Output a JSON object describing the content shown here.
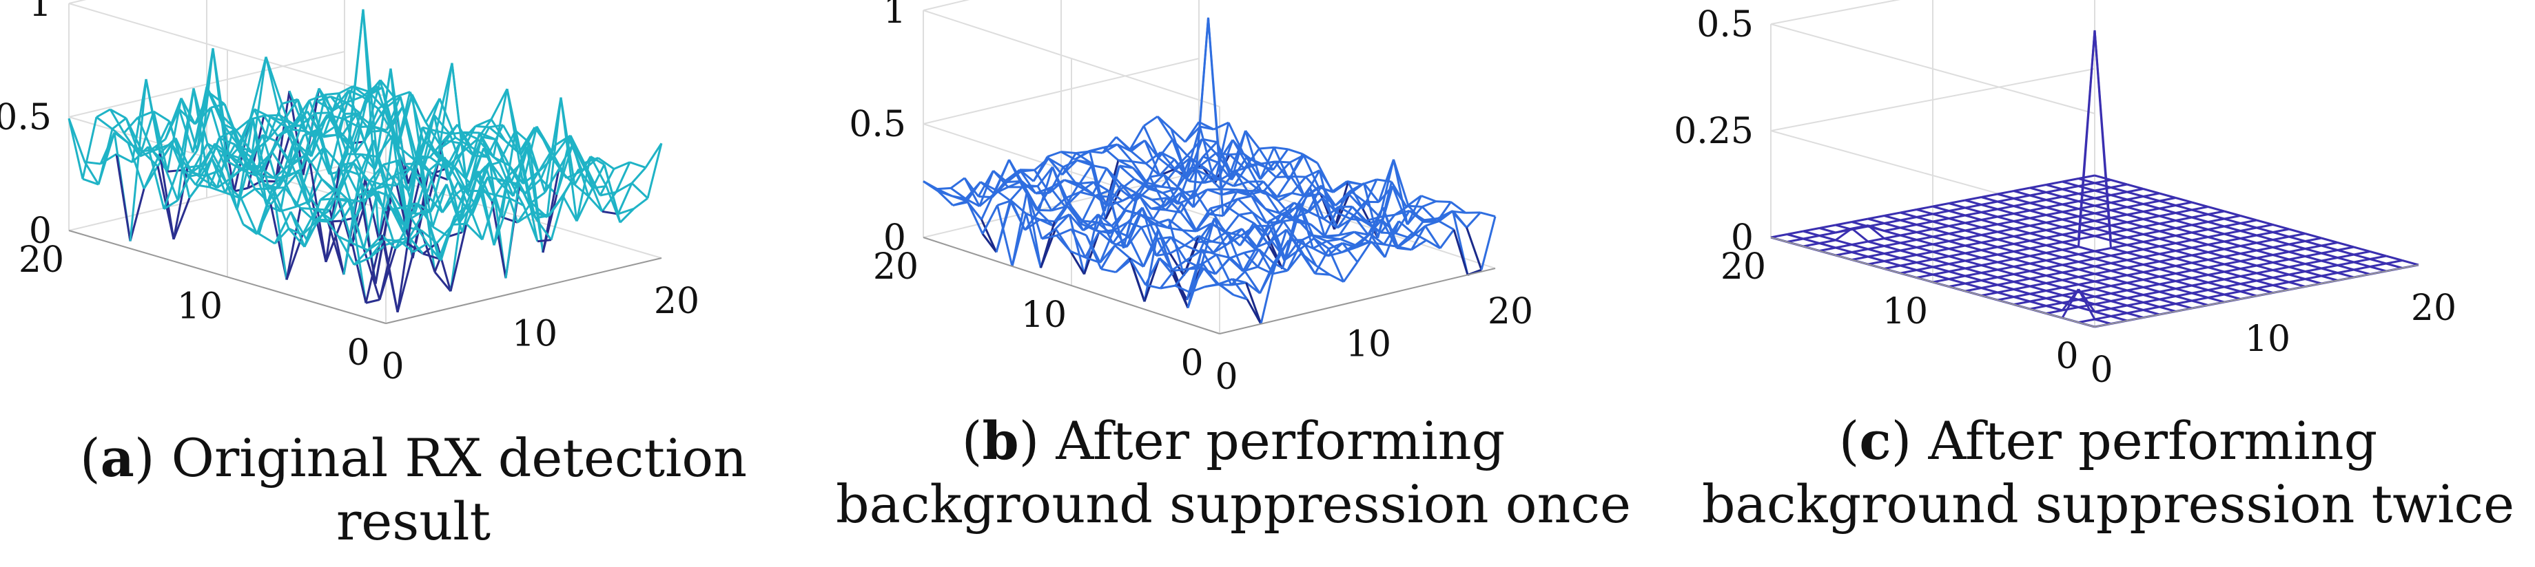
{
  "chart_data": [
    {
      "type": "surface",
      "letter": "a",
      "caption": "Original RX detection result",
      "x_ticks": [
        "0",
        "10",
        "20"
      ],
      "y_ticks": [
        "0",
        "10",
        "20"
      ],
      "z_ticks": [
        "0",
        "0.5",
        "1"
      ],
      "zlim": [
        0,
        1
      ],
      "grid_size": 21,
      "background_level": 0.35,
      "peak": {
        "x": 11,
        "y": 11,
        "value": 1.0
      },
      "mesh_colors": [
        "#1fb3c6",
        "#2a2f8f"
      ]
    },
    {
      "type": "surface",
      "letter": "b",
      "caption": "After performing background suppression once",
      "x_ticks": [
        "0",
        "10",
        "20"
      ],
      "y_ticks": [
        "0",
        "10",
        "20"
      ],
      "z_ticks": [
        "0",
        "0.5",
        "1"
      ],
      "zlim": [
        0,
        1
      ],
      "grid_size": 21,
      "background_level": 0.18,
      "peak": {
        "x": 11,
        "y": 11,
        "value": 1.0
      },
      "mesh_colors": [
        "#2f6ee0",
        "#1a2a8a"
      ]
    },
    {
      "type": "surface",
      "letter": "c",
      "caption": "After performing background suppression twice",
      "x_ticks": [
        "0",
        "10",
        "20"
      ],
      "y_ticks": [
        "0",
        "10",
        "20"
      ],
      "z_ticks": [
        "0",
        "0.25",
        "0.5"
      ],
      "zlim": [
        0,
        0.5
      ],
      "grid_size": 21,
      "background_level": 0.0,
      "peak": {
        "x": 11,
        "y": 11,
        "value": 0.5
      },
      "mesh_colors": [
        "#3a2fb0",
        "#1b1a80"
      ]
    }
  ]
}
